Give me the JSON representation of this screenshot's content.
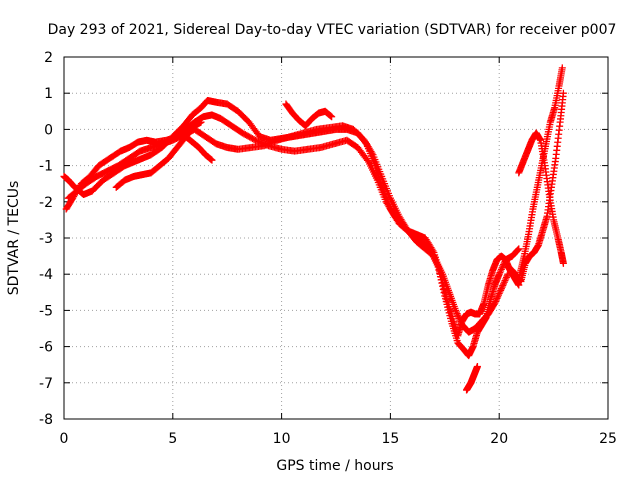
{
  "chart_data": {
    "type": "scatter",
    "title": "Day 293 of 2021, Sidereal Day-to-day VTEC variation (SDTVAR) for receiver p007",
    "xlabel": "GPS time / hours",
    "ylabel": "SDTVAR / TECUs",
    "xlim": [
      0,
      25
    ],
    "ylim": [
      -8,
      2
    ],
    "xticks": [
      0,
      5,
      10,
      15,
      20,
      25
    ],
    "yticks": [
      -8,
      -7,
      -6,
      -5,
      -4,
      -3,
      -2,
      -1,
      0,
      1,
      2
    ],
    "grid": true,
    "marker": "+",
    "color": "#ff0000",
    "series": [
      {
        "name": "track-1",
        "x": [
          0,
          0.2,
          0.5,
          0.9,
          1.3,
          1.8,
          2.3,
          2.8,
          3.2,
          3.6,
          4.0,
          4.5,
          5.0,
          5.5,
          5.9,
          6.3,
          6.6,
          7.0,
          7.5,
          8.0,
          8.5,
          9.0,
          9.5,
          10.0,
          10.5,
          11.0,
          11.5,
          12.0,
          12.5,
          13.0,
          13.5,
          13.9,
          14.3,
          14.6,
          15.0,
          15.4,
          15.8,
          16.2,
          16.6,
          17.0,
          17.3,
          17.6,
          17.9,
          18.1,
          18.3,
          18.5,
          18.7,
          18.9,
          19.1,
          19.3,
          19.5,
          19.7,
          19.9,
          20.1,
          20.3,
          20.5,
          20.7,
          20.9
        ],
        "y": [
          -1.3,
          -1.4,
          -1.6,
          -1.8,
          -1.7,
          -1.4,
          -1.2,
          -1.0,
          -0.9,
          -0.8,
          -0.7,
          -0.5,
          -0.2,
          0.1,
          0.4,
          0.6,
          0.8,
          0.75,
          0.7,
          0.5,
          0.2,
          -0.2,
          -0.3,
          -0.25,
          -0.2,
          -0.15,
          -0.1,
          -0.05,
          0.0,
          0.0,
          -0.1,
          -0.4,
          -1.0,
          -1.6,
          -2.2,
          -2.6,
          -2.8,
          -2.9,
          -3.0,
          -3.4,
          -4.0,
          -4.7,
          -5.3,
          -5.7,
          -5.3,
          -5.1,
          -5.05,
          -5.1,
          -5.1,
          -4.8,
          -4.3,
          -3.9,
          -3.6,
          -3.5,
          -3.6,
          -3.9,
          -4.1,
          -4.3
        ]
      },
      {
        "name": "track-2",
        "x": [
          0.1,
          0.4,
          0.8,
          1.2,
          1.6,
          2.1,
          2.6,
          3.0,
          3.4,
          3.8,
          4.2,
          4.7,
          5.2,
          5.6,
          6.0,
          6.4,
          6.8,
          7.2,
          7.7,
          8.2,
          8.8,
          9.4,
          10.0,
          10.6,
          11.2,
          11.8,
          12.4,
          13.0,
          13.5,
          14.0,
          14.4,
          14.8,
          15.2,
          15.6,
          16.0,
          16.4,
          16.8,
          17.2,
          17.5,
          17.8,
          18.1,
          18.4,
          18.6,
          18.8,
          19.0,
          19.2,
          19.4,
          19.6,
          19.8,
          20.0,
          20.3,
          20.6,
          20.9
        ],
        "y": [
          -2.2,
          -1.9,
          -1.5,
          -1.3,
          -1.0,
          -0.8,
          -0.6,
          -0.5,
          -0.35,
          -0.3,
          -0.35,
          -0.3,
          -0.2,
          0.0,
          0.2,
          0.35,
          0.4,
          0.3,
          0.1,
          -0.1,
          -0.3,
          -0.45,
          -0.55,
          -0.6,
          -0.55,
          -0.5,
          -0.4,
          -0.3,
          -0.5,
          -0.9,
          -1.4,
          -2.0,
          -2.4,
          -2.7,
          -2.9,
          -3.1,
          -3.3,
          -3.8,
          -4.6,
          -5.3,
          -5.9,
          -6.1,
          -6.25,
          -6.0,
          -5.6,
          -5.4,
          -5.2,
          -4.7,
          -4.3,
          -4.0,
          -3.6,
          -3.5,
          -3.3
        ]
      },
      {
        "name": "track-3",
        "x": [
          0.2,
          0.6,
          1.0,
          1.5,
          2.0,
          2.5,
          3.0,
          3.5,
          4.0,
          4.5,
          5.0,
          5.5,
          6.0,
          6.5,
          7.0,
          7.5,
          8.0,
          8.6,
          9.2,
          9.8,
          10.4,
          11.0,
          11.6,
          12.2,
          12.8,
          13.3,
          13.8,
          14.2,
          14.6,
          15.0,
          15.4,
          15.8,
          16.2,
          16.6,
          17.0,
          17.4,
          17.7,
          18.0,
          18.3,
          18.6,
          18.9,
          19.2,
          19.5,
          19.8,
          20.1,
          20.4
        ],
        "y": [
          -1.9,
          -1.7,
          -1.5,
          -1.3,
          -1.15,
          -1.0,
          -0.8,
          -0.6,
          -0.5,
          -0.4,
          -0.3,
          -0.15,
          0.0,
          -0.2,
          -0.4,
          -0.5,
          -0.55,
          -0.5,
          -0.45,
          -0.3,
          -0.2,
          -0.1,
          0.0,
          0.05,
          0.1,
          0.0,
          -0.3,
          -0.7,
          -1.3,
          -1.9,
          -2.4,
          -2.8,
          -3.1,
          -3.3,
          -3.5,
          -4.0,
          -4.5,
          -5.0,
          -5.4,
          -5.6,
          -5.5,
          -5.3,
          -5.1,
          -4.8,
          -4.4,
          -4.0
        ]
      },
      {
        "name": "track-4",
        "x": [
          2.4,
          2.8,
          3.2,
          3.6,
          4.0,
          4.4,
          4.8,
          5.2,
          5.6,
          6.0,
          6.3
        ],
        "y": [
          -1.6,
          -1.4,
          -1.3,
          -1.25,
          -1.2,
          -1.0,
          -0.8,
          -0.5,
          -0.2,
          0.1,
          0.2
        ]
      },
      {
        "name": "track-5",
        "x": [
          5.6,
          5.9,
          6.2,
          6.5,
          6.8
        ],
        "y": [
          -0.2,
          -0.35,
          -0.5,
          -0.7,
          -0.85
        ]
      },
      {
        "name": "track-6",
        "x": [
          10.2,
          10.5,
          10.8,
          11.1,
          11.4,
          11.7,
          12.0,
          12.3
        ],
        "y": [
          0.7,
          0.45,
          0.25,
          0.1,
          0.3,
          0.45,
          0.5,
          0.35
        ]
      },
      {
        "name": "track-7",
        "x": [
          20.4,
          20.6,
          20.8,
          21.0,
          21.2,
          21.4,
          21.6,
          21.8,
          22.0,
          22.2,
          22.4,
          22.6,
          22.8,
          22.95
        ],
        "y": [
          -3.8,
          -3.9,
          -4.05,
          -4.2,
          -3.7,
          -3.5,
          -3.4,
          -3.2,
          -2.8,
          -2.4,
          -1.6,
          -0.8,
          0.2,
          1.0
        ]
      },
      {
        "name": "track-8",
        "x": [
          20.9,
          21.1,
          21.3,
          21.5,
          21.7,
          21.9,
          22.1,
          22.3,
          22.5,
          22.7,
          22.85,
          22.95
        ],
        "y": [
          -1.2,
          -0.9,
          -0.6,
          -0.3,
          -0.1,
          -0.3,
          -1.0,
          -1.8,
          -2.5,
          -3.0,
          -3.4,
          -3.7
        ]
      },
      {
        "name": "track-9",
        "x": [
          20.95,
          21.15,
          21.35,
          21.55,
          21.75,
          21.95,
          22.15,
          22.35,
          22.55,
          22.75,
          22.9
        ],
        "y": [
          -4.0,
          -3.5,
          -2.9,
          -2.2,
          -1.6,
          -1.0,
          -0.4,
          0.2,
          0.6,
          1.2,
          1.7
        ]
      },
      {
        "name": "track-10",
        "x": [
          18.5,
          18.6,
          18.7,
          18.8,
          18.9,
          19.0
        ],
        "y": [
          -7.2,
          -7.1,
          -7.0,
          -6.85,
          -6.7,
          -6.55
        ]
      }
    ]
  }
}
